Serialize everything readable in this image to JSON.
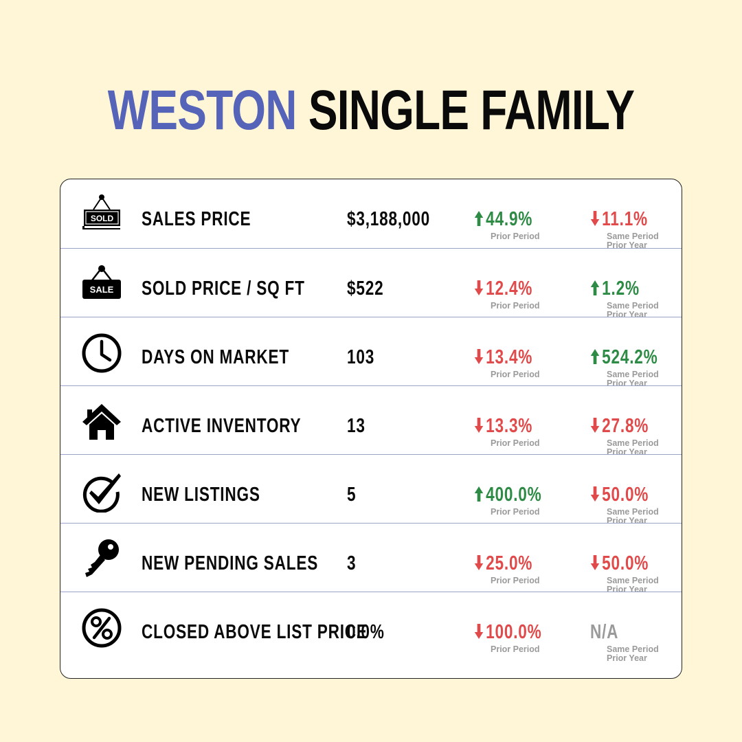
{
  "title": {
    "location": "WESTON",
    "type": "SINGLE FAMILY"
  },
  "colors": {
    "background": "#fef6d6",
    "accent": "#5563b8",
    "up": "#2e8b45",
    "down": "#e04a4a",
    "na": "#9a9a9a"
  },
  "labels": {
    "prior_period": "Prior Period",
    "same_period": "Same Period",
    "prior_year": "Prior Year"
  },
  "rows": [
    {
      "icon": "sold-sign-icon",
      "icon_text": "SOLD",
      "metric": "SALES PRICE",
      "value": "$3,188,000",
      "prior_period": {
        "text": "44.9%",
        "dir": "up"
      },
      "prior_year": {
        "text": "11.1%",
        "dir": "down"
      }
    },
    {
      "icon": "sale-sign-icon",
      "icon_text": "SALE",
      "metric": "SOLD PRICE / SQ FT",
      "value": "$522",
      "prior_period": {
        "text": "12.4%",
        "dir": "down"
      },
      "prior_year": {
        "text": "1.2%",
        "dir": "up"
      }
    },
    {
      "icon": "clock-icon",
      "metric": "DAYS ON MARKET",
      "value": "103",
      "prior_period": {
        "text": "13.4%",
        "dir": "down"
      },
      "prior_year": {
        "text": "524.2%",
        "dir": "up"
      }
    },
    {
      "icon": "house-icon",
      "metric": "ACTIVE INVENTORY",
      "value": "13",
      "prior_period": {
        "text": "13.3%",
        "dir": "down"
      },
      "prior_year": {
        "text": "27.8%",
        "dir": "down"
      }
    },
    {
      "icon": "checkmark-icon",
      "metric": "NEW LISTINGS",
      "value": "5",
      "prior_period": {
        "text": "400.0%",
        "dir": "up"
      },
      "prior_year": {
        "text": "50.0%",
        "dir": "down"
      }
    },
    {
      "icon": "key-icon",
      "metric": "NEW PENDING SALES",
      "value": "3",
      "prior_period": {
        "text": "25.0%",
        "dir": "down"
      },
      "prior_year": {
        "text": "50.0%",
        "dir": "down"
      }
    },
    {
      "icon": "percent-icon",
      "metric": "CLOSED ABOVE LIST PRICE",
      "value": "0.0%",
      "prior_period": {
        "text": "100.0%",
        "dir": "down"
      },
      "prior_year": {
        "text": "N/A",
        "dir": "na"
      }
    }
  ]
}
